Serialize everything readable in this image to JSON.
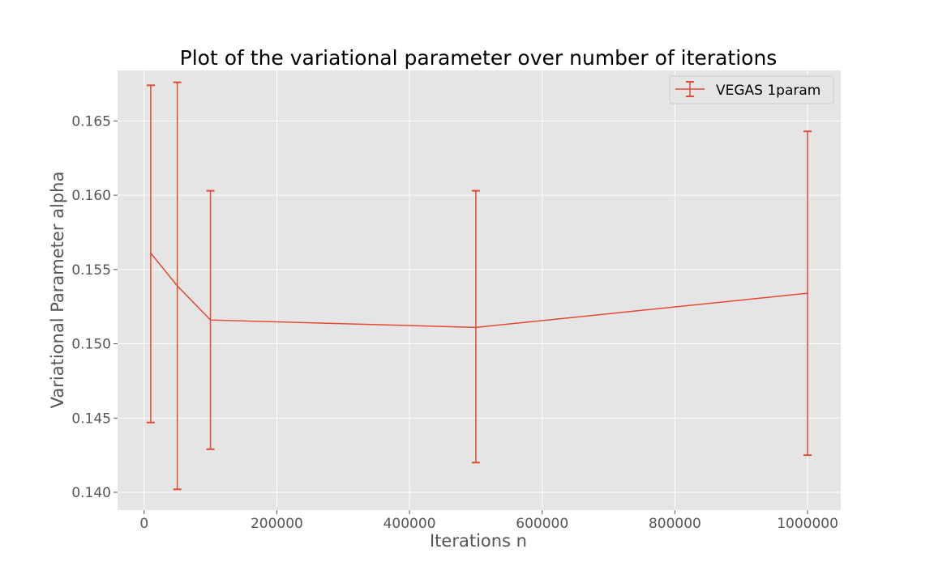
{
  "chart_data": {
    "type": "line",
    "title": "Plot of the variational parameter over number of iterations",
    "xlabel": "Iterations n",
    "ylabel": "Variational Parameter alpha",
    "xlim": [
      -40000,
      1050000
    ],
    "ylim": [
      0.1388,
      0.1684
    ],
    "xticks": [
      0,
      200000,
      400000,
      600000,
      800000,
      1000000
    ],
    "xtick_labels": [
      "0",
      "200000",
      "400000",
      "600000",
      "800000",
      "1000000"
    ],
    "yticks": [
      0.14,
      0.145,
      0.15,
      0.155,
      0.16,
      0.165
    ],
    "ytick_labels": [
      "0.140",
      "0.145",
      "0.150",
      "0.155",
      "0.160",
      "0.165"
    ],
    "grid": true,
    "legend_position": "top-right",
    "series": [
      {
        "name": "VEGAS 1param",
        "color": "#e24a33",
        "x": [
          10000,
          50000,
          100000,
          500000,
          1000000
        ],
        "y": [
          0.1561,
          0.1539,
          0.1516,
          0.1511,
          0.1534
        ],
        "yerr_low": [
          0.1447,
          0.1402,
          0.1429,
          0.142,
          0.1425
        ],
        "yerr_high": [
          0.1674,
          0.1676,
          0.1603,
          0.1603,
          0.1643
        ]
      }
    ]
  }
}
